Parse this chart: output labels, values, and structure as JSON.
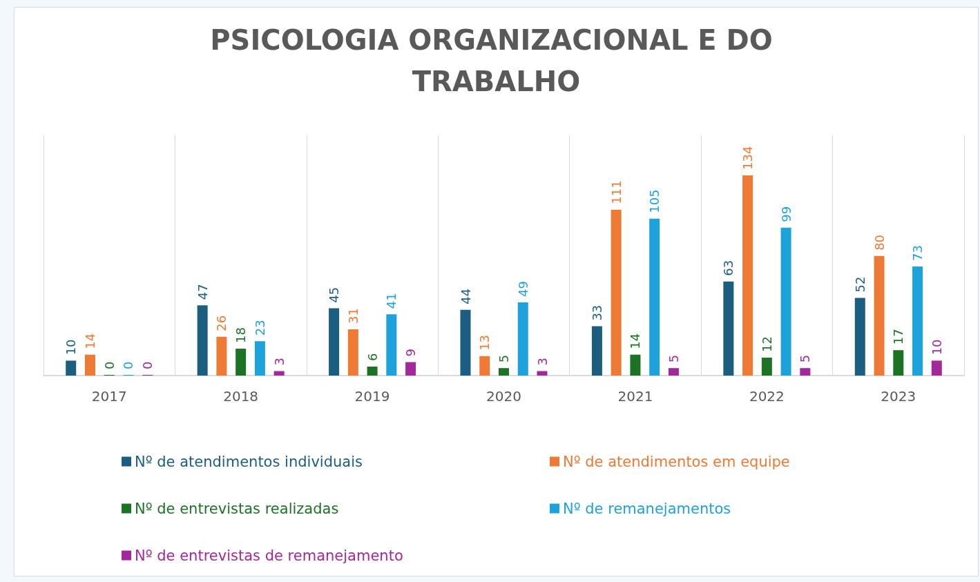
{
  "chart_data": {
    "type": "bar",
    "title": "PSICOLOGIA ORGANIZACIONAL E DO TRABALHO",
    "categories": [
      "2017",
      "2018",
      "2019",
      "2020",
      "2021",
      "2022",
      "2023"
    ],
    "series": [
      {
        "name": "Nº de atendimentos individuais",
        "color": "#1b5e80",
        "values": [
          10,
          47,
          45,
          44,
          33,
          63,
          52
        ]
      },
      {
        "name": "Nº de atendimentos em equipe",
        "color": "#ee7a35",
        "values": [
          14,
          26,
          31,
          13,
          111,
          134,
          80
        ]
      },
      {
        "name": "Nº de entrevistas realizadas",
        "color": "#1d7324",
        "values": [
          0,
          18,
          6,
          5,
          14,
          12,
          17
        ]
      },
      {
        "name": "Nº de remanejamentos",
        "color": "#1ea2dc",
        "values": [
          0,
          23,
          41,
          49,
          105,
          99,
          73
        ]
      },
      {
        "name": "Nº de entrevistas de remanejamento",
        "color": "#a2289c",
        "values": [
          0,
          3,
          9,
          3,
          5,
          5,
          10
        ]
      }
    ],
    "data_labels": true,
    "grid": "x",
    "legend": "bottom"
  }
}
